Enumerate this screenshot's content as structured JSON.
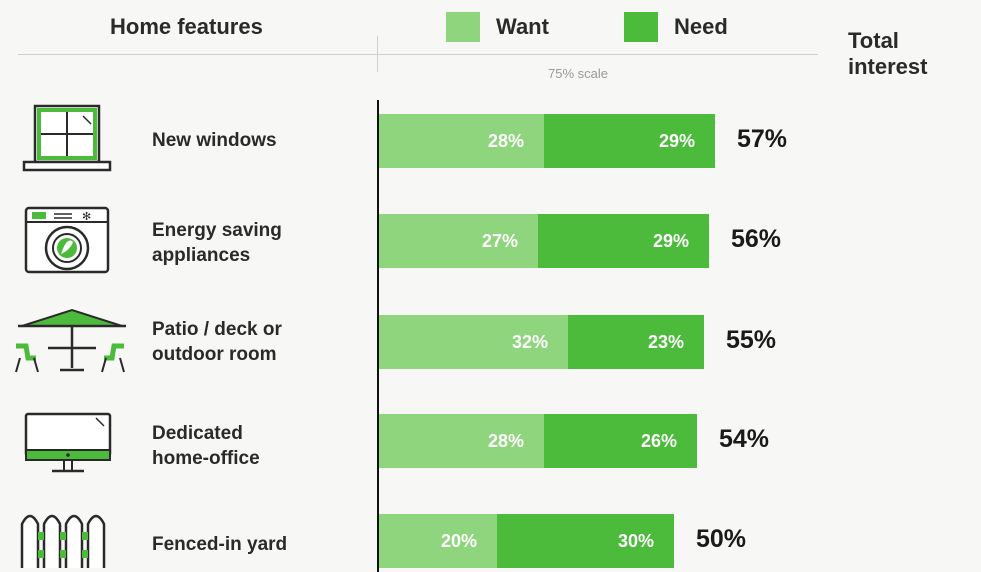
{
  "header": {
    "features_label": "Home features",
    "total_label_line1": "Total",
    "total_label_line2": "interest",
    "scale_note": "75% scale"
  },
  "legend": [
    {
      "label": "Want",
      "color": "#8fd57e"
    },
    {
      "label": "Need",
      "color": "#4cbb3b"
    }
  ],
  "chart_data": {
    "type": "bar",
    "orientation": "horizontal",
    "stacked": true,
    "categories": [
      "New windows",
      "Energy saving appliances",
      "Patio / deck or outdoor room",
      "Dedicated home-office",
      "Fenced-in yard"
    ],
    "category_lines": [
      [
        "New windows"
      ],
      [
        "Energy saving",
        "appliances"
      ],
      [
        "Patio / deck or",
        "outdoor room"
      ],
      [
        "Dedicated",
        "home-office"
      ],
      [
        "Fenced-in yard"
      ]
    ],
    "icons": [
      "window-icon",
      "washing-machine-icon",
      "patio-umbrella-icon",
      "monitor-icon",
      "fence-icon"
    ],
    "series": [
      {
        "name": "Want",
        "values": [
          28,
          27,
          32,
          28,
          20
        ],
        "labels": [
          "28%",
          "27%",
          "32%",
          "28%",
          "20%"
        ],
        "color": "#8fd57e"
      },
      {
        "name": "Need",
        "values": [
          29,
          29,
          23,
          26,
          30
        ],
        "labels": [
          "29%",
          "29%",
          "23%",
          "26%",
          "30%"
        ],
        "color": "#4cbb3b"
      }
    ],
    "totals": [
      57,
      56,
      55,
      54,
      50
    ],
    "total_labels": [
      "57%",
      "56%",
      "55%",
      "54%",
      "50%"
    ],
    "xlim": [
      0,
      75
    ],
    "legend_position": "top"
  }
}
